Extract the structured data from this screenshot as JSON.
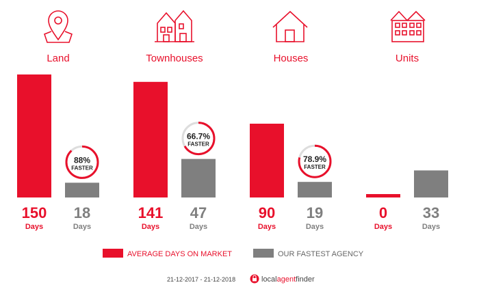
{
  "chart_data": {
    "type": "bar",
    "categories": [
      "Land",
      "Townhouses",
      "Houses",
      "Units"
    ],
    "series": [
      {
        "name": "AVERAGE DAYS ON MARKET",
        "values": [
          150,
          141,
          90,
          0
        ],
        "color": "#e8102b"
      },
      {
        "name": "OUR FASTEST AGENCY",
        "values": [
          18,
          47,
          19,
          33
        ],
        "color": "#7f7f7f"
      }
    ],
    "unit_label": "Days",
    "ylim": [
      0,
      150
    ],
    "badges": [
      {
        "category": "Land",
        "percent": 88,
        "text": "88%",
        "label": "FASTER"
      },
      {
        "category": "Townhouses",
        "percent": 66.7,
        "text": "66.7%",
        "label": "FASTER"
      },
      {
        "category": "Houses",
        "percent": 78.9,
        "text": "78.9%",
        "label": "FASTER"
      }
    ],
    "icons": [
      "map-pin-icon",
      "townhouses-icon",
      "house-icon",
      "units-icon"
    ],
    "legend_position": "bottom"
  },
  "footer": {
    "date_range": "21-12-2017 - 21-12-2018",
    "brand_local": "local",
    "brand_agent": "agent",
    "brand_finder": "finder",
    "brand_icon": "lock-icon"
  },
  "colors": {
    "red": "#e8102b",
    "gray": "#7f7f7f",
    "light_gray": "#dddddd"
  }
}
